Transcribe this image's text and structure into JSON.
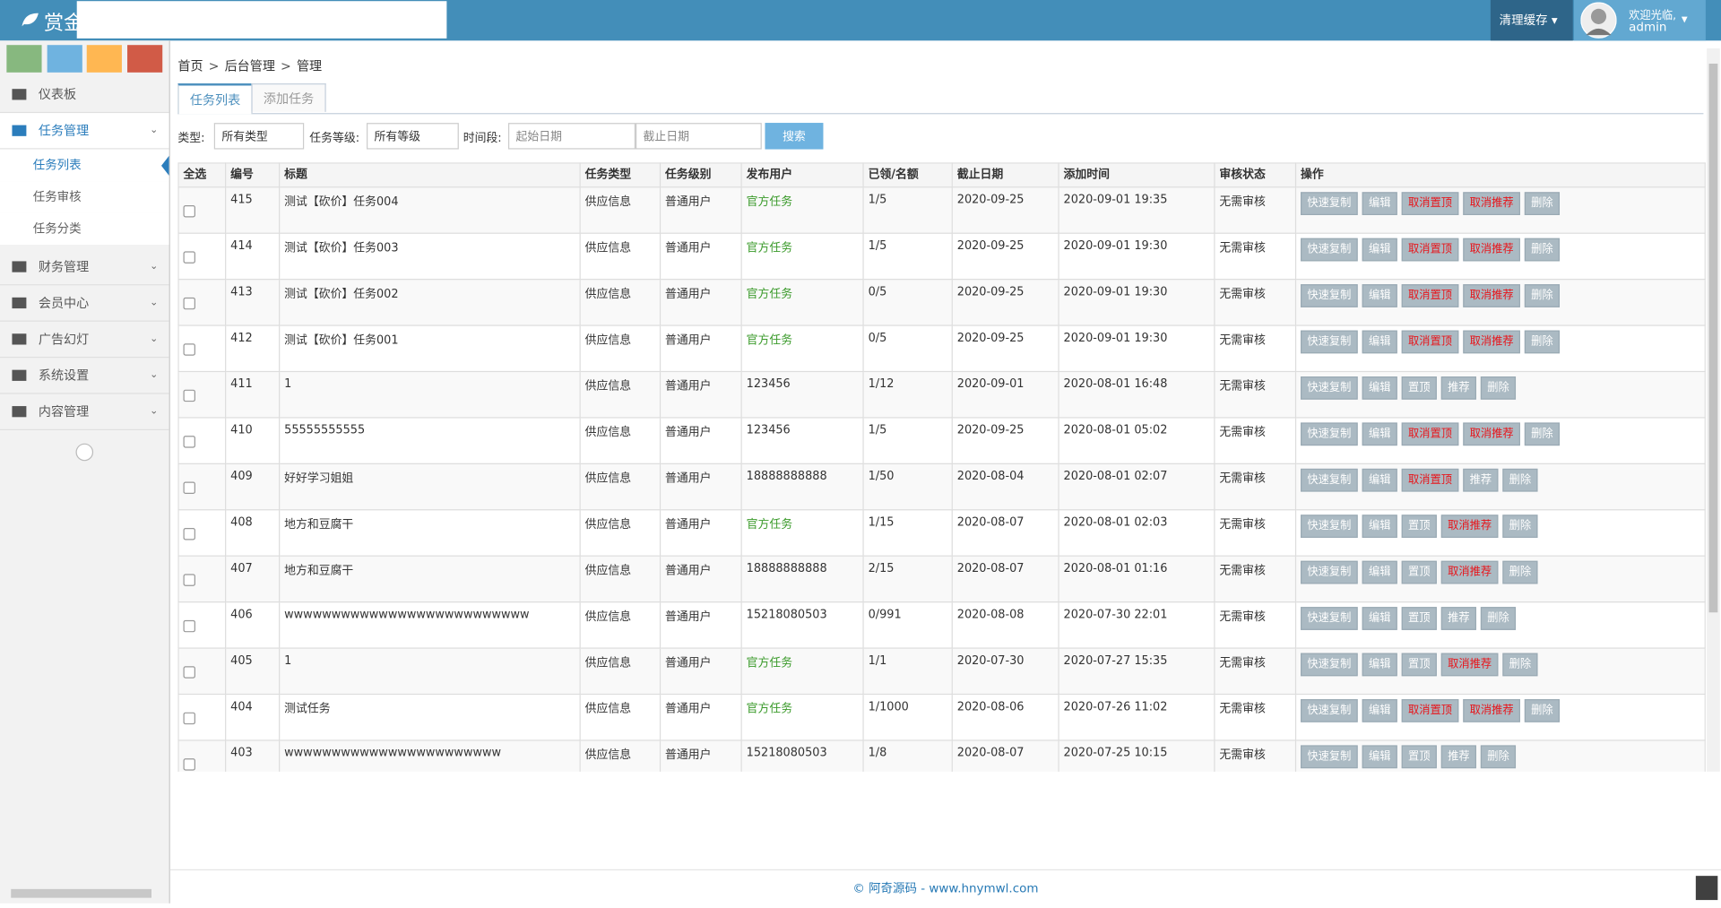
{
  "header": {
    "brand": "赏金",
    "cache": "清理缓存",
    "welcome": "欢迎光临,",
    "user": "admin"
  },
  "sidebar": {
    "menu": [
      {
        "label": "仪表板"
      },
      {
        "label": "任务管理",
        "open": true,
        "children": [
          "任务列表",
          "任务审核",
          "任务分类"
        ]
      },
      {
        "label": "财务管理"
      },
      {
        "label": "会员中心"
      },
      {
        "label": "广告幻灯"
      },
      {
        "label": "系统设置"
      },
      {
        "label": "内容管理"
      }
    ]
  },
  "breadcrumb": [
    "首页",
    "后台管理",
    "管理"
  ],
  "tabs": [
    "任务列表",
    "添加任务"
  ],
  "filters": {
    "type_label": "类型:",
    "type_value": "所有类型",
    "level_label": "任务等级:",
    "level_value": "所有等级",
    "time_label": "时间段:",
    "start_placeholder": "起始日期",
    "end_placeholder": "截止日期",
    "search": "搜索"
  },
  "table": {
    "columns": [
      "全选",
      "编号",
      "标题",
      "任务类型",
      "任务级别",
      "发布用户",
      "已领/名额",
      "截止日期",
      "添加时间",
      "审核状态",
      "操作"
    ],
    "rows": [
      {
        "id": "415",
        "title": "测试【砍价】任务004",
        "type": "供应信息",
        "level": "普通用户",
        "publisher": "官方任务",
        "publisher_color": "#3a9a2a",
        "count": "1/5",
        "deadline": "2020-09-25",
        "added": "2020-09-01 19:35",
        "status": "无需审核",
        "actions": [
          {
            "label": "快速复制"
          },
          {
            "label": "编辑"
          },
          {
            "label": "取消置顶",
            "color": "#e8141a"
          },
          {
            "label": "取消推荐",
            "color": "#e8141a"
          },
          {
            "label": "删除"
          }
        ]
      },
      {
        "id": "414",
        "title": "测试【砍价】任务003",
        "type": "供应信息",
        "level": "普通用户",
        "publisher": "官方任务",
        "publisher_color": "#3a9a2a",
        "count": "1/5",
        "deadline": "2020-09-25",
        "added": "2020-09-01 19:30",
        "status": "无需审核",
        "actions": [
          {
            "label": "快速复制"
          },
          {
            "label": "编辑"
          },
          {
            "label": "取消置顶",
            "color": "#e8141a"
          },
          {
            "label": "取消推荐",
            "color": "#e8141a"
          },
          {
            "label": "删除"
          }
        ]
      },
      {
        "id": "413",
        "title": "测试【砍价】任务002",
        "type": "供应信息",
        "level": "普通用户",
        "publisher": "官方任务",
        "publisher_color": "#3a9a2a",
        "count": "0/5",
        "deadline": "2020-09-25",
        "added": "2020-09-01 19:30",
        "status": "无需审核",
        "actions": [
          {
            "label": "快速复制"
          },
          {
            "label": "编辑"
          },
          {
            "label": "取消置顶",
            "color": "#e8141a"
          },
          {
            "label": "取消推荐",
            "color": "#e8141a"
          },
          {
            "label": "删除"
          }
        ]
      },
      {
        "id": "412",
        "title": "测试【砍价】任务001",
        "type": "供应信息",
        "level": "普通用户",
        "publisher": "官方任务",
        "publisher_color": "#3a9a2a",
        "count": "0/5",
        "deadline": "2020-09-25",
        "added": "2020-09-01 19:30",
        "status": "无需审核",
        "actions": [
          {
            "label": "快速复制"
          },
          {
            "label": "编辑"
          },
          {
            "label": "取消置顶",
            "color": "#e8141a"
          },
          {
            "label": "取消推荐",
            "color": "#e8141a"
          },
          {
            "label": "删除"
          }
        ]
      },
      {
        "id": "411",
        "title": "1",
        "type": "供应信息",
        "level": "普通用户",
        "publisher": "123456",
        "count": "1/12",
        "deadline": "2020-09-01",
        "added": "2020-08-01 16:48",
        "status": "无需审核",
        "actions": [
          {
            "label": "快速复制"
          },
          {
            "label": "编辑"
          },
          {
            "label": "置顶"
          },
          {
            "label": "推荐"
          },
          {
            "label": "删除"
          }
        ]
      },
      {
        "id": "410",
        "title": "55555555555",
        "type": "供应信息",
        "level": "普通用户",
        "publisher": "123456",
        "count": "1/5",
        "deadline": "2020-09-25",
        "added": "2020-08-01 05:02",
        "status": "无需审核",
        "actions": [
          {
            "label": "快速复制"
          },
          {
            "label": "编辑"
          },
          {
            "label": "取消置顶",
            "color": "#e8141a"
          },
          {
            "label": "取消推荐",
            "color": "#e8141a"
          },
          {
            "label": "删除"
          }
        ]
      },
      {
        "id": "409",
        "title": "好好学习姐姐",
        "type": "供应信息",
        "level": "普通用户",
        "publisher": "18888888888",
        "count": "1/50",
        "deadline": "2020-08-04",
        "added": "2020-08-01 02:07",
        "status": "无需审核",
        "actions": [
          {
            "label": "快速复制"
          },
          {
            "label": "编辑"
          },
          {
            "label": "取消置顶",
            "color": "#e8141a"
          },
          {
            "label": "推荐"
          },
          {
            "label": "删除"
          }
        ]
      },
      {
        "id": "408",
        "title": "地方和豆腐干",
        "type": "供应信息",
        "level": "普通用户",
        "publisher": "官方任务",
        "publisher_color": "#3a9a2a",
        "count": "1/15",
        "deadline": "2020-08-07",
        "added": "2020-08-01 02:03",
        "status": "无需审核",
        "actions": [
          {
            "label": "快速复制"
          },
          {
            "label": "编辑"
          },
          {
            "label": "置顶"
          },
          {
            "label": "取消推荐",
            "color": "#e8141a"
          },
          {
            "label": "删除"
          }
        ]
      },
      {
        "id": "407",
        "title": "地方和豆腐干",
        "type": "供应信息",
        "level": "普通用户",
        "publisher": "18888888888",
        "count": "2/15",
        "deadline": "2020-08-07",
        "added": "2020-08-01 01:16",
        "status": "无需审核",
        "actions": [
          {
            "label": "快速复制"
          },
          {
            "label": "编辑"
          },
          {
            "label": "置顶"
          },
          {
            "label": "取消推荐",
            "color": "#e8141a"
          },
          {
            "label": "删除"
          }
        ]
      },
      {
        "id": "406",
        "title": "wwwwwwwwwwwwwwwwwwwwwwwwww",
        "type": "供应信息",
        "level": "普通用户",
        "publisher": "15218080503",
        "count": "0/991",
        "deadline": "2020-08-08",
        "added": "2020-07-30 22:01",
        "status": "无需审核",
        "actions": [
          {
            "label": "快速复制"
          },
          {
            "label": "编辑"
          },
          {
            "label": "置顶"
          },
          {
            "label": "推荐"
          },
          {
            "label": "删除"
          }
        ]
      },
      {
        "id": "405",
        "title": "1",
        "type": "供应信息",
        "level": "普通用户",
        "publisher": "官方任务",
        "publisher_color": "#3a9a2a",
        "count": "1/1",
        "deadline": "2020-07-30",
        "added": "2020-07-27 15:35",
        "status": "无需审核",
        "actions": [
          {
            "label": "快速复制"
          },
          {
            "label": "编辑"
          },
          {
            "label": "置顶"
          },
          {
            "label": "取消推荐",
            "color": "#e8141a"
          },
          {
            "label": "删除"
          }
        ]
      },
      {
        "id": "404",
        "title": "测试任务",
        "type": "供应信息",
        "level": "普通用户",
        "publisher": "官方任务",
        "publisher_color": "#3a9a2a",
        "count": "1/1000",
        "deadline": "2020-08-06",
        "added": "2020-07-26 11:02",
        "status": "无需审核",
        "actions": [
          {
            "label": "快速复制"
          },
          {
            "label": "编辑"
          },
          {
            "label": "取消置顶",
            "color": "#e8141a"
          },
          {
            "label": "取消推荐",
            "color": "#e8141a"
          },
          {
            "label": "删除"
          }
        ]
      },
      {
        "id": "403",
        "title": "wwwwwwwwwwwwwwwwwwwwwww",
        "type": "供应信息",
        "level": "普通用户",
        "publisher": "15218080503",
        "count": "1/8",
        "deadline": "2020-08-07",
        "added": "2020-07-25 10:15",
        "status": "无需审核",
        "actions": [
          {
            "label": "快速复制"
          },
          {
            "label": "编辑"
          },
          {
            "label": "置顶"
          },
          {
            "label": "推荐"
          },
          {
            "label": "删除"
          }
        ]
      }
    ]
  },
  "footer": "© 阿奇源码 - www.hnymwl.com"
}
